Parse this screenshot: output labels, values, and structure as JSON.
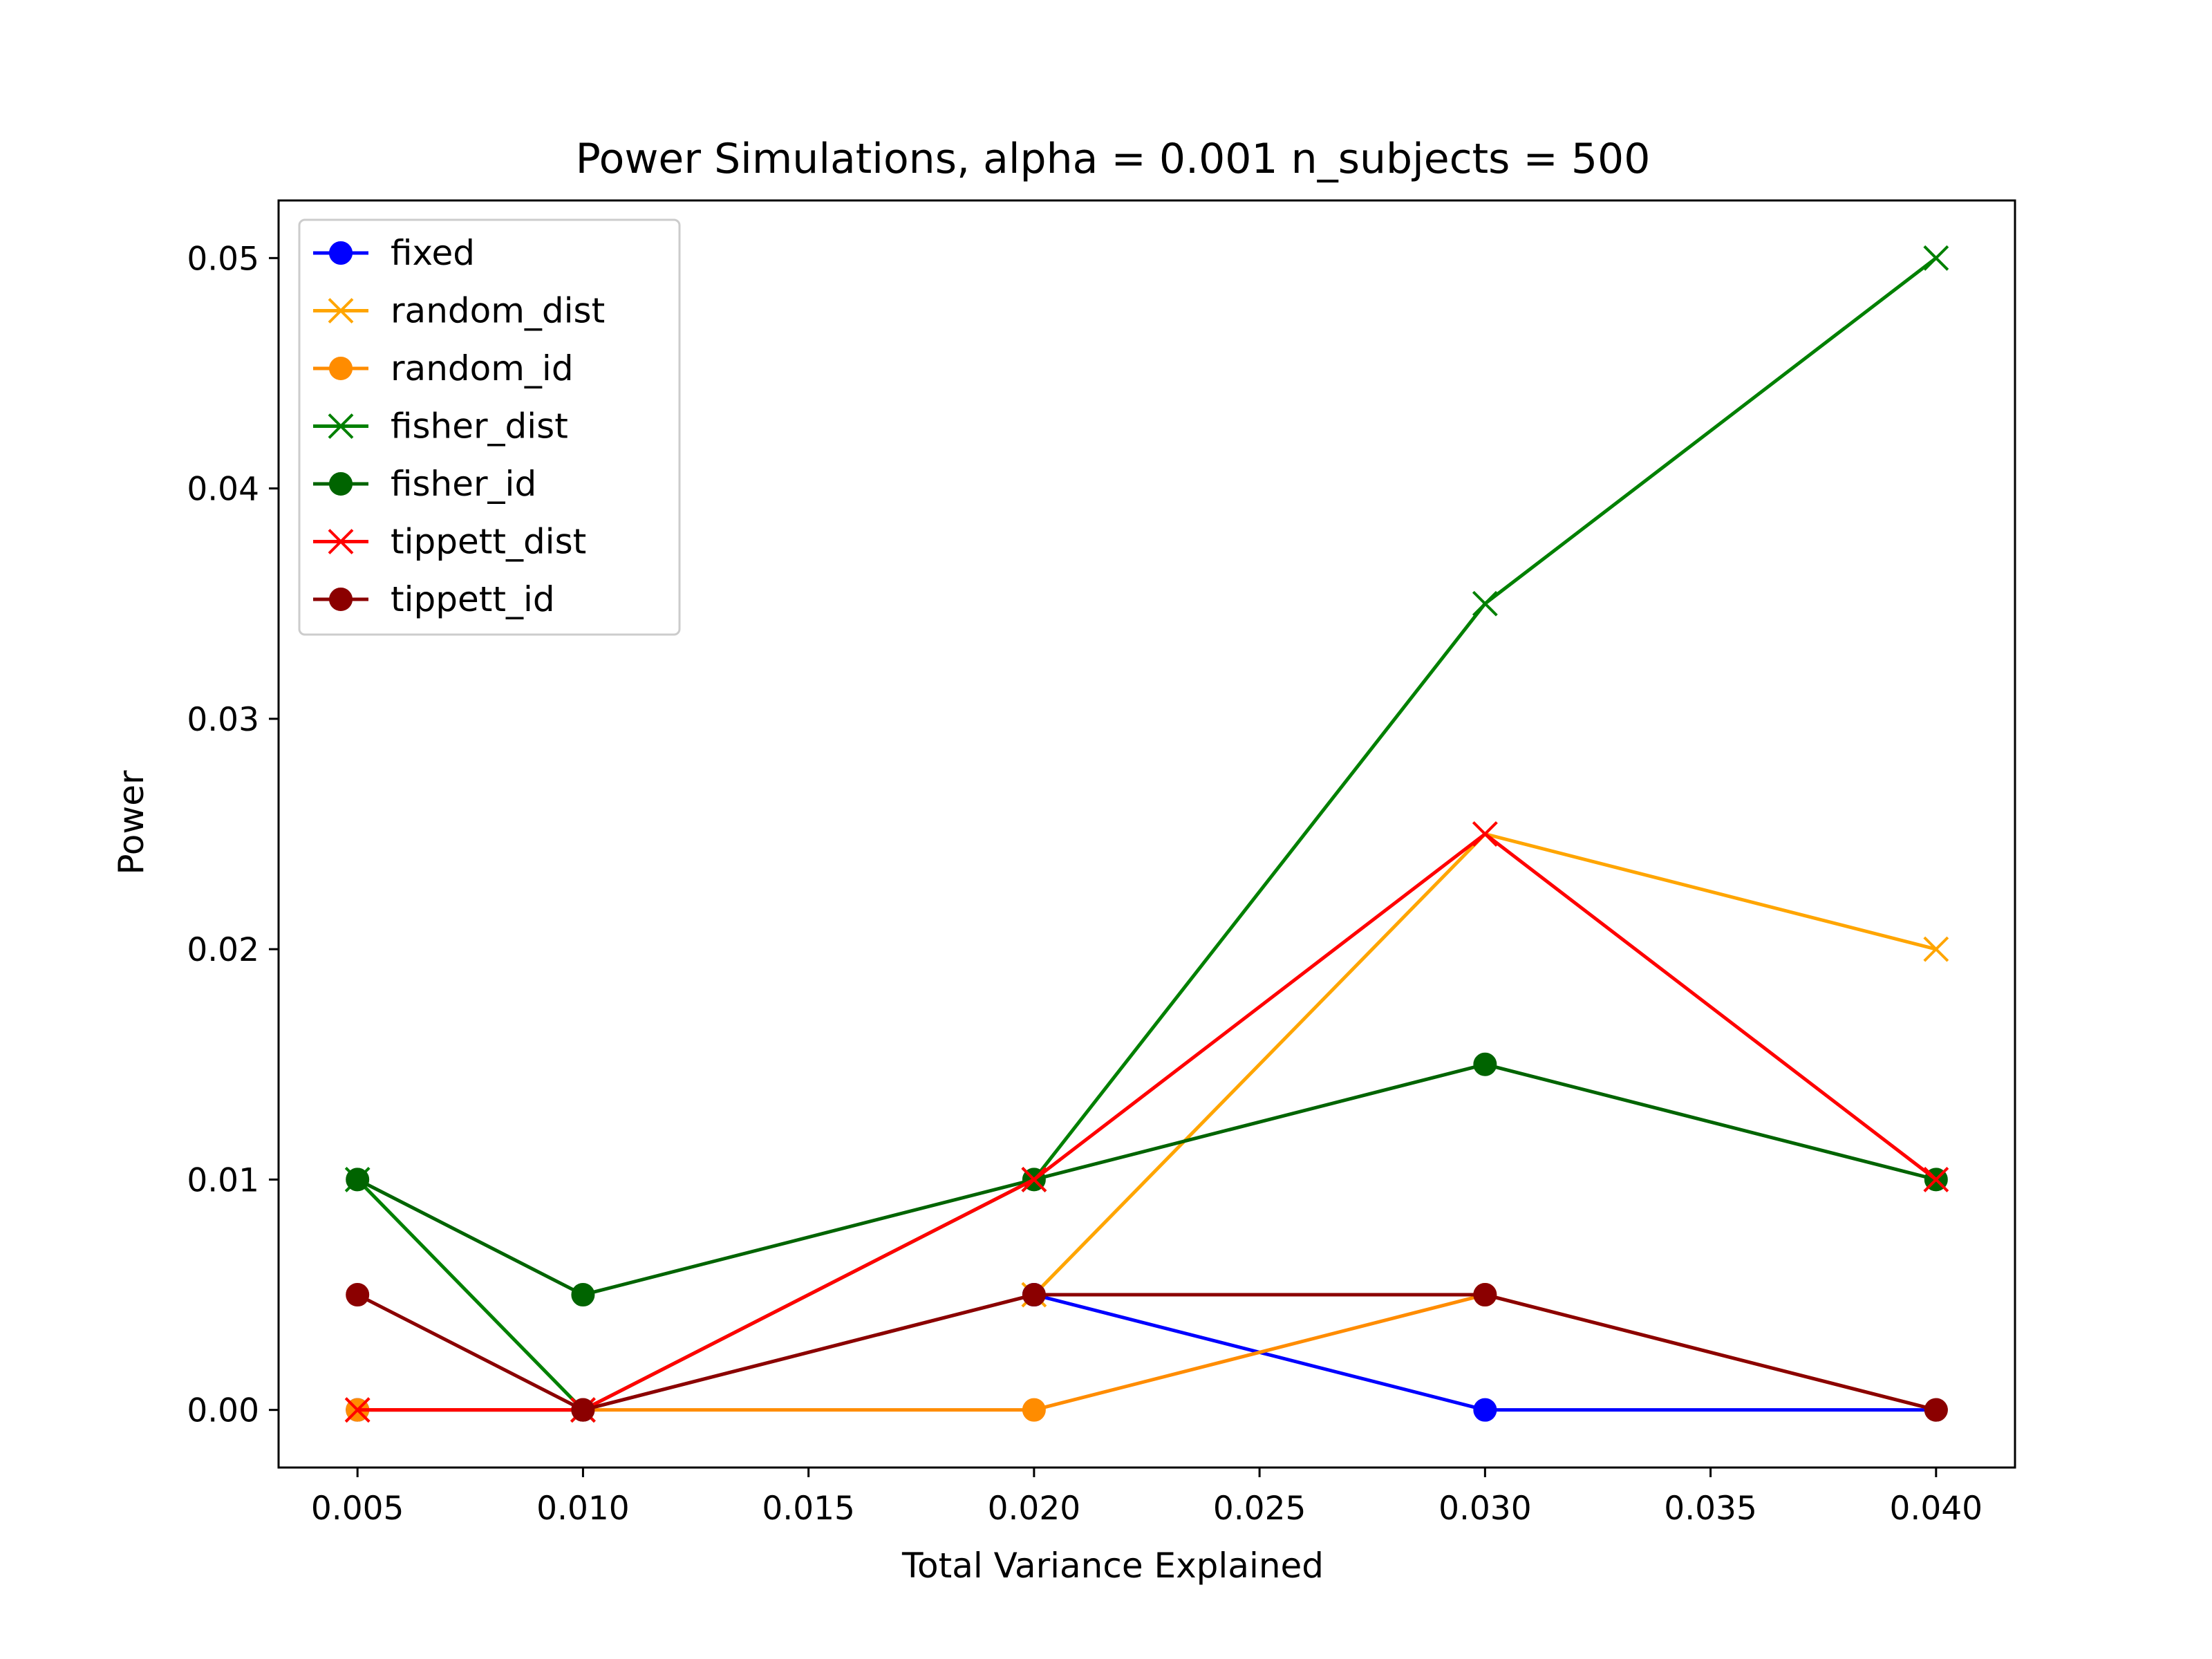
{
  "chart_data": {
    "type": "line",
    "title": "Power Simulations, alpha = 0.001 n_subjects = 500",
    "xlabel": "Total Variance Explained",
    "ylabel": "Power",
    "x": [
      0.005,
      0.01,
      0.02,
      0.03,
      0.04
    ],
    "xlim": [
      0.00325,
      0.04175
    ],
    "ylim": [
      -0.0025,
      0.0525
    ],
    "xticks": [
      "0.005",
      "0.010",
      "0.015",
      "0.020",
      "0.025",
      "0.030",
      "0.035",
      "0.040"
    ],
    "yticks": [
      "0.00",
      "0.01",
      "0.02",
      "0.03",
      "0.04",
      "0.05"
    ],
    "grid": false,
    "legend_position": "upper-left",
    "series": [
      {
        "name": "fixed",
        "color": "#0000ff",
        "marker": "circle",
        "values": [
          0.0,
          0.0,
          0.005,
          0.0,
          0.0
        ]
      },
      {
        "name": "random_dist",
        "color": "#ffa500",
        "marker": "x",
        "values": [
          0.0,
          0.0,
          0.005,
          0.025,
          0.02
        ]
      },
      {
        "name": "random_id",
        "color": "#ff8c00",
        "marker": "circle",
        "values": [
          0.0,
          0.0,
          0.0,
          0.005,
          0.0
        ]
      },
      {
        "name": "fisher_dist",
        "color": "#008000",
        "marker": "x",
        "values": [
          0.01,
          0.0,
          0.01,
          0.035,
          0.05
        ]
      },
      {
        "name": "fisher_id",
        "color": "#006400",
        "marker": "circle",
        "values": [
          0.01,
          0.005,
          0.01,
          0.015,
          0.01
        ]
      },
      {
        "name": "tippett_dist",
        "color": "#ff0000",
        "marker": "x",
        "values": [
          0.0,
          0.0,
          0.01,
          0.025,
          0.01
        ]
      },
      {
        "name": "tippett_id",
        "color": "#8b0000",
        "marker": "circle",
        "values": [
          0.005,
          0.0,
          0.005,
          0.005,
          0.0
        ]
      }
    ]
  }
}
